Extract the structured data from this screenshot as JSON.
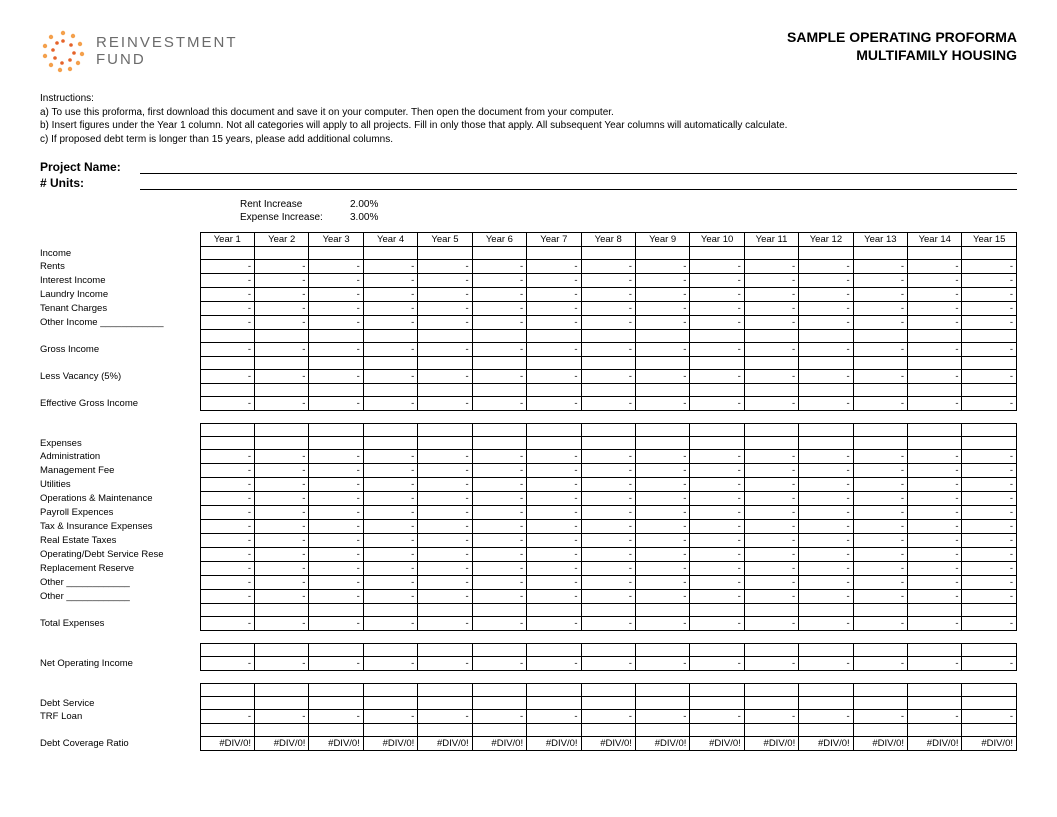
{
  "header": {
    "logo_line1": "REINVESTMENT",
    "logo_line2": "FUND",
    "title_line1": "SAMPLE OPERATING PROFORMA",
    "title_line2": "MULTIFAMILY HOUSING"
  },
  "instructions": {
    "heading": "Instructions:",
    "a": "a) To use this proforma, first download this document and save it on your computer.  Then open the document from your computer.",
    "b": "b) Insert figures under the Year 1 column.   Not all categories will apply to all projects.  Fill in only those that apply.   All subsequent Year columns will automatically calculate.",
    "c": "c) If proposed debt term is longer than 15 years, please add additional columns."
  },
  "fields": {
    "project_name_label": "Project Name:",
    "units_label": "# Units:"
  },
  "params": {
    "rent_label": "Rent Increase",
    "rent_value": "2.00%",
    "expense_label": "Expense Increase:",
    "expense_value": "3.00%"
  },
  "years": [
    "Year 1",
    "Year 2",
    "Year 3",
    "Year 4",
    "Year 5",
    "Year 6",
    "Year 7",
    "Year 8",
    "Year 9",
    "Year 10",
    "Year 11",
    "Year 12",
    "Year 13",
    "Year 14",
    "Year 15"
  ],
  "rows": [
    {
      "label": "Income",
      "type": "header"
    },
    {
      "label": "Rents",
      "type": "dash"
    },
    {
      "label": "Interest Income",
      "type": "dash"
    },
    {
      "label": "Laundry Income",
      "type": "dash"
    },
    {
      "label": "Tenant Charges",
      "type": "dash"
    },
    {
      "label": "Other Income ____________",
      "type": "dash"
    },
    {
      "label": "",
      "type": "empty"
    },
    {
      "label": "Gross Income",
      "type": "dash"
    },
    {
      "label": "",
      "type": "empty"
    },
    {
      "label": "Less Vacancy (5%)",
      "type": "dash"
    },
    {
      "label": "",
      "type": "empty"
    },
    {
      "label": "Effective Gross Income",
      "type": "dash"
    },
    {
      "label": "",
      "type": "spacer"
    },
    {
      "label": "",
      "type": "empty"
    },
    {
      "label": "Expenses",
      "type": "header"
    },
    {
      "label": "Administration",
      "type": "dash"
    },
    {
      "label": "Management Fee",
      "type": "dash"
    },
    {
      "label": "Utilities",
      "type": "dash"
    },
    {
      "label": "Operations & Maintenance",
      "type": "dash"
    },
    {
      "label": "Payroll Expences",
      "type": "dash"
    },
    {
      "label": "Tax & Insurance Expenses",
      "type": "dash"
    },
    {
      "label": "Real Estate Taxes",
      "type": "dash"
    },
    {
      "label": "Operating/Debt Service Rese",
      "type": "dash"
    },
    {
      "label": "Replacement Reserve",
      "type": "dash"
    },
    {
      "label": "Other ____________",
      "type": "dash"
    },
    {
      "label": "Other ____________",
      "type": "dash"
    },
    {
      "label": "",
      "type": "empty"
    },
    {
      "label": "Total Expenses",
      "type": "dash"
    },
    {
      "label": "",
      "type": "spacer"
    },
    {
      "label": "",
      "type": "empty"
    },
    {
      "label": "Net Operating Income",
      "type": "dash"
    },
    {
      "label": "",
      "type": "spacer"
    },
    {
      "label": "",
      "type": "empty"
    },
    {
      "label": "Debt Service",
      "type": "header"
    },
    {
      "label": "TRF Loan",
      "type": "dash"
    },
    {
      "label": "",
      "type": "empty"
    },
    {
      "label": "Debt Coverage Ratio",
      "type": "div0"
    }
  ],
  "cell": {
    "dash": "-",
    "div0": "#DIV/0!",
    "empty": ""
  },
  "logo_colors": {
    "outer": "#f4a04c",
    "inner": "#e5632a"
  }
}
